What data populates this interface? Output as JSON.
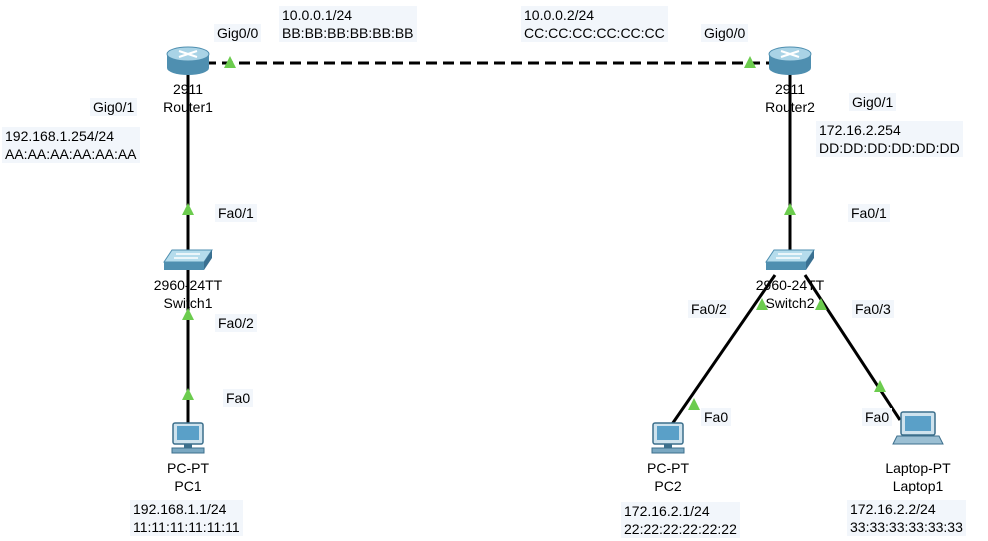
{
  "colors": {
    "link": "#000000",
    "port_indicator": "#6ccc4e",
    "router_body": "#9fc7db",
    "switch_body": "#8fb9d0",
    "label_bg": "#f2f6fb"
  },
  "devices": {
    "router1": {
      "model": "2911",
      "name": "Router1",
      "icon": "router-icon"
    },
    "router2": {
      "model": "2911",
      "name": "Router2",
      "icon": "router-icon"
    },
    "switch1": {
      "model": "2960-24TT",
      "name": "Switch1",
      "icon": "switch-icon"
    },
    "switch2": {
      "model": "2960-24TT",
      "name": "Switch2",
      "icon": "switch-icon"
    },
    "pc1": {
      "model": "PC-PT",
      "name": "PC1",
      "icon": "pc-icon"
    },
    "pc2": {
      "model": "PC-PT",
      "name": "PC2",
      "icon": "pc-icon"
    },
    "laptop1": {
      "model": "Laptop-PT",
      "name": "Laptop1",
      "icon": "laptop-icon"
    }
  },
  "ports": {
    "r1_gig00": "Gig0/0",
    "r1_gig01": "Gig0/1",
    "r2_gig00": "Gig0/0",
    "r2_gig01": "Gig0/1",
    "sw1_fa01": "Fa0/1",
    "sw1_fa02": "Fa0/2",
    "pc1_fa0": "Fa0",
    "sw2_fa01": "Fa0/1",
    "sw2_fa02": "Fa0/2",
    "sw2_fa03": "Fa0/3",
    "pc2_fa0": "Fa0",
    "laptop1_fa0": "Fa0"
  },
  "addresses": {
    "r1_gig00": {
      "ip": "10.0.0.1/24",
      "mac": "BB:BB:BB:BB:BB:BB"
    },
    "r2_gig00": {
      "ip": "10.0.0.2/24",
      "mac": "CC:CC:CC:CC:CC:CC"
    },
    "r1_gig01": {
      "ip": "192.168.1.254/24",
      "mac": "AA:AA:AA:AA:AA:AA"
    },
    "r2_gig01": {
      "ip": "172.16.2.254",
      "mac": "DD:DD:DD:DD:DD:DD"
    },
    "pc1": {
      "ip": "192.168.1.1/24",
      "mac": "11:11:11:11:11:11"
    },
    "pc2": {
      "ip": "172.16.2.1/24",
      "mac": "22:22:22:22:22:22"
    },
    "laptop1": {
      "ip": "172.16.2.2/24",
      "mac": "33:33:33:33:33:33"
    }
  },
  "links": [
    {
      "from": "router1",
      "to": "router2",
      "style": "dashed"
    },
    {
      "from": "router1",
      "to": "switch1",
      "style": "solid"
    },
    {
      "from": "switch1",
      "to": "pc1",
      "style": "solid"
    },
    {
      "from": "router2",
      "to": "switch2",
      "style": "solid"
    },
    {
      "from": "switch2",
      "to": "pc2",
      "style": "solid"
    },
    {
      "from": "switch2",
      "to": "laptop1",
      "style": "solid"
    }
  ]
}
